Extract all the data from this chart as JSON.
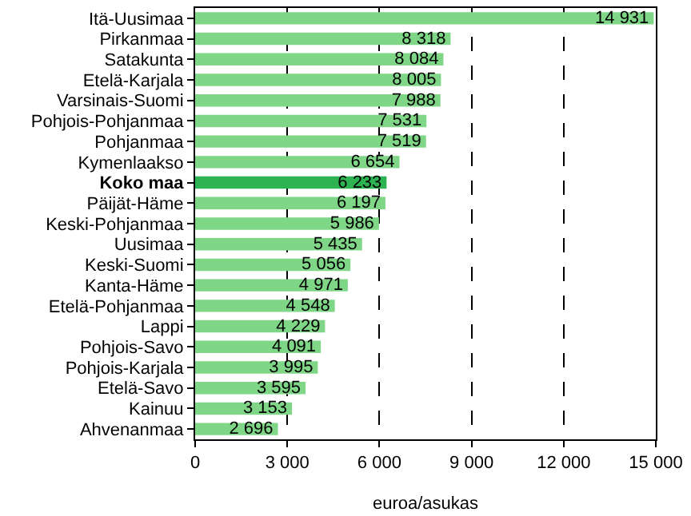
{
  "chart_data": {
    "type": "bar",
    "orientation": "horizontal",
    "xlabel": "euroa/asukas",
    "categories": [
      "Itä-Uusimaa",
      "Pirkanmaa",
      "Satakunta",
      "Etelä-Karjala",
      "Varsinais-Suomi",
      "Pohjois-Pohjanmaa",
      "Pohjanmaa",
      "Kymenlaakso",
      "Koko maa",
      "Päijät-Häme",
      "Keski-Pohjanmaa",
      "Uusimaa",
      "Keski-Suomi",
      "Kanta-Häme",
      "Etelä-Pohjanmaa",
      "Lappi",
      "Pohjois-Savo",
      "Pohjois-Karjala",
      "Etelä-Savo",
      "Kainuu",
      "Ahvenanmaa"
    ],
    "values": [
      14931,
      8318,
      8084,
      8005,
      7988,
      7531,
      7519,
      6654,
      6233,
      6197,
      5986,
      5435,
      5056,
      4971,
      4548,
      4229,
      4091,
      3995,
      3595,
      3153,
      2696
    ],
    "value_labels": [
      "14 931",
      "8 318",
      "8 084",
      "8 005",
      "7 988",
      "7 531",
      "7 519",
      "6 654",
      "6 233",
      "6 197",
      "5 986",
      "5 435",
      "5 056",
      "4 971",
      "4 548",
      "4 229",
      "4 091",
      "3 995",
      "3 595",
      "3 153",
      "2 696"
    ],
    "colors": [
      "#7fd687",
      "#7fd687",
      "#7fd687",
      "#7fd687",
      "#7fd687",
      "#7fd687",
      "#7fd687",
      "#7fd687",
      "#2db352",
      "#7fd687",
      "#7fd687",
      "#7fd687",
      "#7fd687",
      "#7fd687",
      "#7fd687",
      "#7fd687",
      "#7fd687",
      "#7fd687",
      "#7fd687",
      "#7fd687",
      "#7fd687"
    ],
    "xlim": [
      0,
      15000
    ],
    "xticks": [
      0,
      {
        "value": 3000,
        "label": "3 000"
      },
      {
        "value": 6000,
        "label": "6 000"
      },
      {
        "value": 9000,
        "label": "9 000"
      },
      {
        "value": 12000,
        "label": "12 000"
      },
      {
        "value": 15000,
        "label": "15 000"
      }
    ],
    "grid": "x"
  }
}
